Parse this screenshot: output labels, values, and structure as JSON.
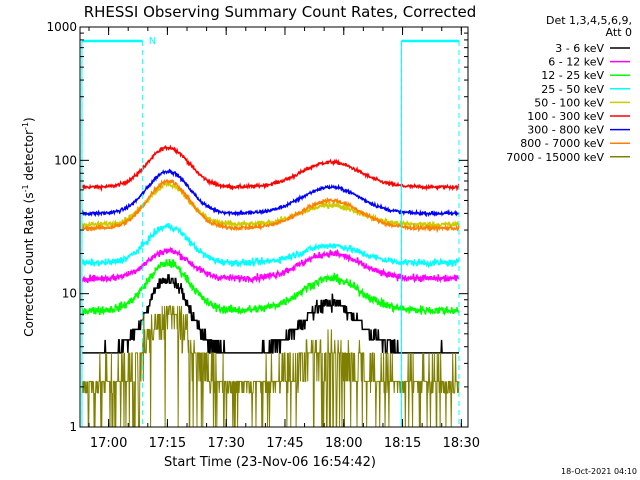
{
  "chart_data": {
    "type": "line",
    "title": "RHESSI Observing Summary Count Rates, Corrected",
    "xlabel": "Start Time (23-Nov-06 16:54:42)",
    "ylabel_prefix": "Corrected Count Rate (s",
    "ylabel_sup1": "-1",
    "ylabel_mid": " detector",
    "ylabel_sup2": "-1",
    "ylabel_suffix": ")",
    "y_scale": "log",
    "ylim": [
      1,
      1000
    ],
    "y_ticks": [
      {
        "value": 1,
        "label": "1"
      },
      {
        "value": 10,
        "label": "10"
      },
      {
        "value": 100,
        "label": "100"
      },
      {
        "value": 1000,
        "label": "1000"
      }
    ],
    "x_range_minutes": [
      -2,
      97
    ],
    "x_ticks": [
      {
        "value": 5.3,
        "label": "17:00"
      },
      {
        "value": 20.3,
        "label": "17:15"
      },
      {
        "value": 35.3,
        "label": "17:30"
      },
      {
        "value": 50.3,
        "label": "17:45"
      },
      {
        "value": 65.3,
        "label": "18:00"
      },
      {
        "value": 80.3,
        "label": "18:15"
      },
      {
        "value": 95.3,
        "label": "18:30"
      }
    ],
    "legend_header": [
      "Det 1,3,4,5,6,9,",
      "Att 0"
    ],
    "series": [
      {
        "name": "3 - 6 keV",
        "color": "#000000",
        "base": 3.6,
        "peak1": 13,
        "peak2": 8.5,
        "noise": 0.07
      },
      {
        "name": "6 - 12 keV",
        "color": "#ff00ff",
        "base": 13,
        "peak1": 21,
        "peak2": 20,
        "noise": 0.04
      },
      {
        "name": "12 - 25 keV",
        "color": "#00ff00",
        "base": 7.5,
        "peak1": 17,
        "peak2": 13,
        "noise": 0.05
      },
      {
        "name": "25 - 50 keV",
        "color": "#00ffff",
        "base": 17,
        "peak1": 32,
        "peak2": 23,
        "noise": 0.04
      },
      {
        "name": "50 - 100 keV",
        "color": "#cccc00",
        "base": 33,
        "peak1": 66,
        "peak2": 46,
        "noise": 0.03
      },
      {
        "name": "100 - 300 keV",
        "color": "#ff0000",
        "base": 63,
        "peak1": 125,
        "peak2": 97,
        "noise": 0.02
      },
      {
        "name": "300 - 800 keV",
        "color": "#0000ff",
        "base": 40,
        "peak1": 83,
        "peak2": 63,
        "noise": 0.02
      },
      {
        "name": "800 - 7000 keV",
        "color": "#ff8000",
        "base": 31,
        "peak1": 70,
        "peak2": 50,
        "noise": 0.025
      },
      {
        "name": "7000 - 15000 keV",
        "color": "#808000",
        "base": 2.2,
        "peak1": 7,
        "peak2": 3.6,
        "noise": 0.25
      }
    ],
    "peaks_minutes": [
      20.5,
      62
    ],
    "attenuator_markers": {
      "solid_segments": [
        [
          -1.5,
          14
        ],
        [
          80,
          94.7
        ]
      ],
      "dashed_verticals": [
        -1.5,
        14,
        80,
        94.7
      ],
      "label": "N"
    },
    "legend_position": "right",
    "grid": false,
    "timestamp": "18-Oct-2021 04:10"
  }
}
